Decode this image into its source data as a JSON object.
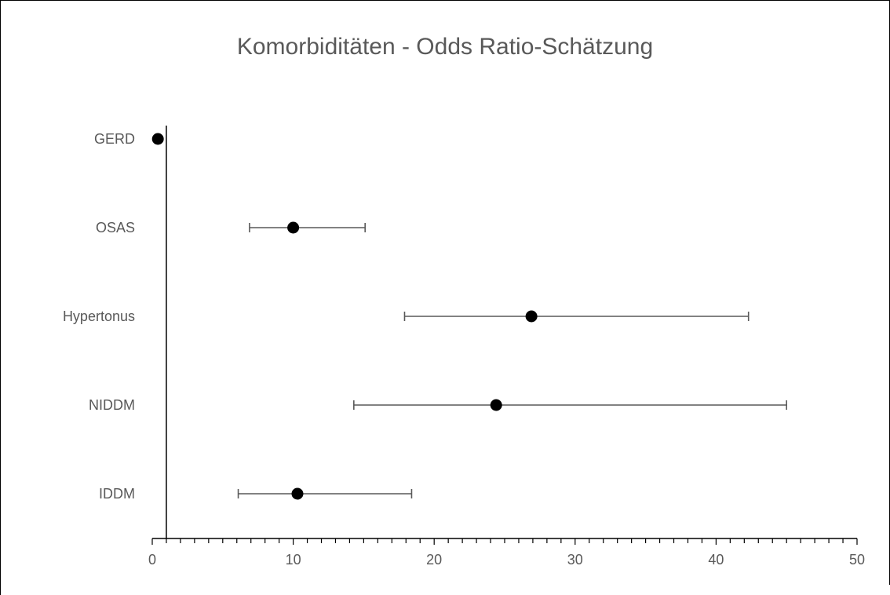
{
  "chart_data": {
    "type": "scatter",
    "title": "Komorbiditäten - Odds Ratio-Schätzung",
    "xlabel": "",
    "ylabel": "",
    "xlim": [
      0,
      50
    ],
    "x_ticks": [
      0,
      10,
      20,
      30,
      40,
      50
    ],
    "x_minor_step": 1,
    "reference_line_x": 1,
    "grid": false,
    "legend": "none",
    "categories": [
      "GERD",
      "OSAS",
      "Hypertonus",
      "NIDDM",
      "IDDM"
    ],
    "series": [
      {
        "points": [
          {
            "category": "GERD",
            "estimate": 0.4,
            "ci_low": null,
            "ci_high": null
          },
          {
            "category": "OSAS",
            "estimate": 10.0,
            "ci_low": 6.9,
            "ci_high": 15.1
          },
          {
            "category": "Hypertonus",
            "estimate": 26.9,
            "ci_low": 17.9,
            "ci_high": 42.3
          },
          {
            "category": "NIDDM",
            "estimate": 24.4,
            "ci_low": 14.3,
            "ci_high": 45.0
          },
          {
            "category": "IDDM",
            "estimate": 10.3,
            "ci_low": 6.1,
            "ci_high": 18.4
          }
        ]
      }
    ],
    "colors": {
      "marker": "#000000",
      "errorbar": "#595959",
      "axis": "#000000",
      "text": "#595959",
      "frame": "#000000"
    }
  }
}
